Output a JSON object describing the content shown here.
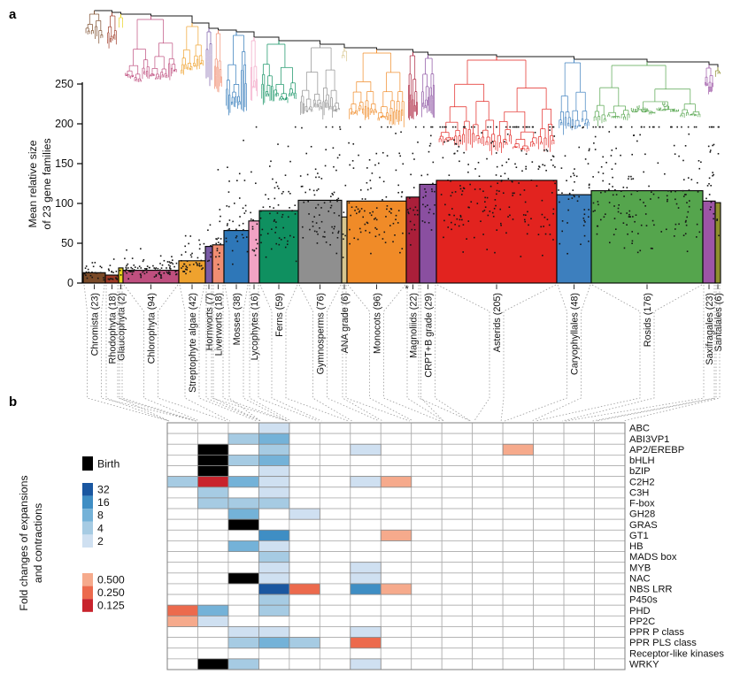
{
  "figure": {
    "panel_a_label": "a",
    "panel_b_label": "b"
  },
  "panel_a": {
    "y_axis_label_line1": "Mean relative size",
    "y_axis_label_line2": "of 23 gene families"
  },
  "panel_b": {
    "axis_label_line1": "Fold changes of expansions",
    "axis_label_line2": "and contractions"
  },
  "chart_data": [
    {
      "type": "bar",
      "title": "",
      "ylabel": "Mean relative size of 23 gene families",
      "ylim": [
        0,
        250
      ],
      "yticks": [
        0,
        50,
        100,
        150,
        200,
        250
      ],
      "grid": false,
      "overlay": "phylogenetic tree above bars, clade colors match bar colors; jittered black points are individual species values",
      "taxa": [
        {
          "label": "Chromista (23)",
          "name": "chromista",
          "count": 23,
          "mean": 13,
          "color": "#7a4a28",
          "heatmap_column": 1
        },
        {
          "label": "Rhodophyta (18)",
          "name": "rhodophyta",
          "count": 18,
          "mean": 10,
          "color": "#9e3a26",
          "heatmap_column": 1
        },
        {
          "label": "Glaucophyta (2)",
          "name": "glaucophyta",
          "count": 2,
          "mean": 19,
          "color": "#e8d31f",
          "heatmap_column": 1
        },
        {
          "label": "Chlorophyta (94)",
          "name": "chlorophyta",
          "count": 94,
          "mean": 16,
          "color": "#bf4f7f",
          "heatmap_column": 2
        },
        {
          "label": "Streptophyte algae (42)",
          "name": "streptophyte-algae",
          "count": 42,
          "mean": 28,
          "color": "#efa22e",
          "heatmap_column": 3
        },
        {
          "label": "Hornworts (7)",
          "name": "hornworts",
          "count": 7,
          "mean": 46,
          "color": "#7a5ba5",
          "heatmap_column": 4
        },
        {
          "label": "Liverworts (18)",
          "name": "liverworts",
          "count": 18,
          "mean": 48,
          "color": "#f08e72",
          "heatmap_column": 4
        },
        {
          "label": "Mosses (38)",
          "name": "mosses",
          "count": 38,
          "mean": 66,
          "color": "#2e77b8",
          "heatmap_column": 4
        },
        {
          "label": "Lycophytes (16)",
          "name": "lycophytes",
          "count": 16,
          "mean": 78,
          "color": "#f2a3c4",
          "heatmap_column": 5
        },
        {
          "label": "Ferns (59)",
          "name": "ferns",
          "count": 59,
          "mean": 91,
          "color": "#0f9060",
          "heatmap_column": 6
        },
        {
          "label": "Gymnosperms (76)",
          "name": "gymnosperms",
          "count": 76,
          "mean": 104,
          "color": "#8f8f8f",
          "heatmap_column": 7
        },
        {
          "label": "ANA grade (6)",
          "name": "ana-grade",
          "count": 6,
          "mean": 83,
          "color": "#d8c68e",
          "heatmap_column": 8
        },
        {
          "label": "Monocots (96)",
          "name": "monocots",
          "count": 96,
          "mean": 103,
          "color": "#f08b28",
          "heatmap_column": 9
        },
        {
          "label": "Magnoliids (22)",
          "name": "magnoliids",
          "count": 22,
          "mean": 108,
          "color": "#aa1f3a",
          "heatmap_column": 10,
          "asterisk": "*"
        },
        {
          "label": "CRPT+B grade (29)",
          "name": "crpt-b-grade",
          "count": 29,
          "mean": 124,
          "color": "#8a4fa0",
          "heatmap_column": 10
        },
        {
          "label": "Asterids (205)",
          "name": "asterids",
          "count": 205,
          "mean": 129,
          "color": "#e2231f",
          "heatmap_column": 11
        },
        {
          "label": "Caryophyllales (48)",
          "name": "caryophyllales",
          "count": 48,
          "mean": 111,
          "color": "#3d7fbe",
          "heatmap_column": 12
        },
        {
          "label": "Rosids (176)",
          "name": "rosids",
          "count": 176,
          "mean": 116,
          "color": "#55a54d",
          "heatmap_column": 13
        },
        {
          "label": "Saxifragales (23)",
          "name": "saxifragales",
          "count": 23,
          "mean": 103,
          "color": "#9d55a5",
          "heatmap_column": 14
        },
        {
          "label": "Santalales (6)",
          "name": "santalales",
          "count": 6,
          "mean": 101,
          "color": "#8f8f2e",
          "heatmap_column": 15
        }
      ]
    },
    {
      "type": "heatmap",
      "title": "",
      "axis_label": "Fold changes of expansions and contractions",
      "n_columns": 15,
      "levels": {
        "birth": "#000000",
        "32": "#1a57a0",
        "16": "#3f8ec4",
        "8": "#74b2d8",
        "4": "#a6cbe3",
        "2": "#cfe0f1",
        "0.500": "#f6aa8c",
        "0.250": "#ec6a4d",
        "0.125": "#c8232c"
      },
      "legend": {
        "birth": {
          "label": "Birth",
          "level": "birth"
        },
        "expansions": [
          {
            "label": "32",
            "level": "32"
          },
          {
            "label": "16",
            "level": "16"
          },
          {
            "label": "8",
            "level": "8"
          },
          {
            "label": "4",
            "level": "4"
          },
          {
            "label": "2",
            "level": "2"
          }
        ],
        "contractions": [
          {
            "label": "0.500",
            "level": "0.500"
          },
          {
            "label": "0.250",
            "level": "0.250"
          },
          {
            "label": "0.125",
            "level": "0.125"
          }
        ]
      },
      "rows": [
        {
          "label": "ABC",
          "cells": {
            "4": "2"
          }
        },
        {
          "label": "ABI3VP1",
          "cells": {
            "3": "4",
            "4": "8"
          }
        },
        {
          "label": "AP2/EREBP",
          "cells": {
            "2": "birth",
            "4": "4",
            "7": "2",
            "12": "0.500"
          }
        },
        {
          "label": "bHLH",
          "cells": {
            "2": "birth",
            "3": "4",
            "4": "8"
          }
        },
        {
          "label": "bZIP",
          "cells": {
            "2": "birth",
            "4": "2"
          }
        },
        {
          "label": "C2H2",
          "cells": {
            "1": "4",
            "2": "0.125",
            "3": "8",
            "4": "2",
            "7": "2",
            "8": "0.500"
          }
        },
        {
          "label": "C3H",
          "cells": {
            "2": "4",
            "4": "2"
          }
        },
        {
          "label": "F-box",
          "cells": {
            "2": "4",
            "3": "4",
            "4": "4"
          }
        },
        {
          "label": "GH28",
          "cells": {
            "3": "8",
            "5": "2"
          }
        },
        {
          "label": "GRAS",
          "cells": {
            "3": "birth"
          }
        },
        {
          "label": "GT1",
          "cells": {
            "4": "16",
            "8": "0.500"
          }
        },
        {
          "label": "HB",
          "cells": {
            "3": "8",
            "4": "2"
          }
        },
        {
          "label": "MADS box",
          "cells": {
            "4": "4"
          }
        },
        {
          "label": "MYB",
          "cells": {
            "4": "2",
            "7": "2"
          }
        },
        {
          "label": "NAC",
          "cells": {
            "3": "birth",
            "4": "2",
            "7": "2"
          }
        },
        {
          "label": "NBS LRR",
          "cells": {
            "4": "32",
            "5": "0.250",
            "7": "16",
            "8": "0.500"
          }
        },
        {
          "label": "P450s",
          "cells": {
            "4": "4"
          }
        },
        {
          "label": "PHD",
          "cells": {
            "1": "0.250",
            "2": "8",
            "4": "4"
          }
        },
        {
          "label": "PP2C",
          "cells": {
            "1": "0.500",
            "2": "2"
          }
        },
        {
          "label": "PPR P class",
          "cells": {
            "3": "2",
            "4": "2",
            "7": "2"
          }
        },
        {
          "label": "PPR PLS class",
          "cells": {
            "3": "4",
            "4": "8",
            "5": "4",
            "7": "0.250"
          }
        },
        {
          "label": "Receptor-like kinases",
          "cells": {}
        },
        {
          "label": "WRKY",
          "cells": {
            "2": "birth",
            "3": "4",
            "7": "2"
          }
        }
      ]
    }
  ]
}
